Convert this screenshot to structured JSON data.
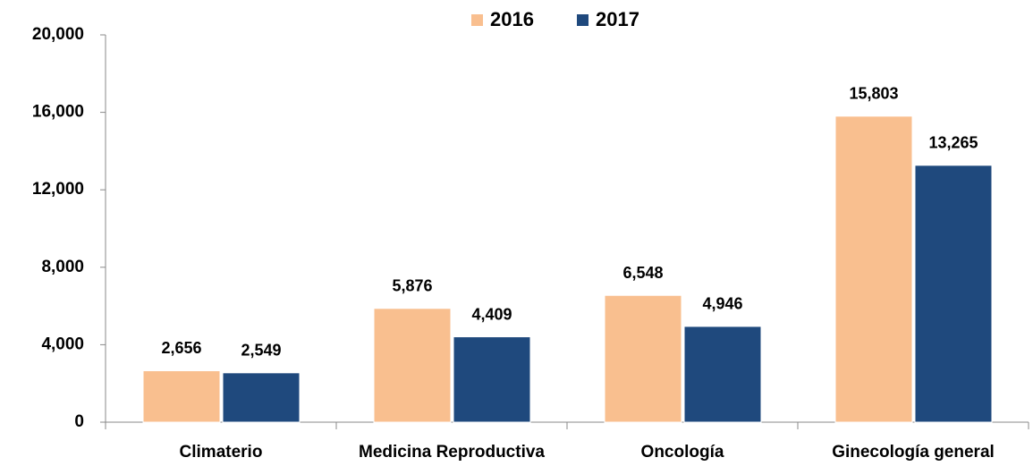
{
  "chart_data": {
    "type": "bar",
    "categories": [
      "Climaterio",
      "Medicina Reproductiva",
      "Oncología",
      "Ginecología general"
    ],
    "series": [
      {
        "name": "2016",
        "color": "#f9bf8f",
        "values": [
          2656,
          5876,
          6548,
          15803
        ],
        "value_labels": [
          "2,656",
          "5,876",
          "6,548",
          "15,803"
        ]
      },
      {
        "name": "2017",
        "color": "#1f497d",
        "values": [
          2549,
          4409,
          4946,
          13265
        ],
        "value_labels": [
          "2,549",
          "4,409",
          "4,946",
          "13,265"
        ]
      }
    ],
    "ylim": [
      0,
      20000
    ],
    "yticks": [
      0,
      {
        "value": 4000,
        "label": "4,000"
      },
      {
        "value": 8000,
        "label": "8,000"
      },
      {
        "value": 12000,
        "label": "12,000"
      },
      {
        "value": 16000,
        "label": "16,000"
      },
      {
        "value": 20000,
        "label": "20,000"
      }
    ],
    "legend": "top"
  }
}
